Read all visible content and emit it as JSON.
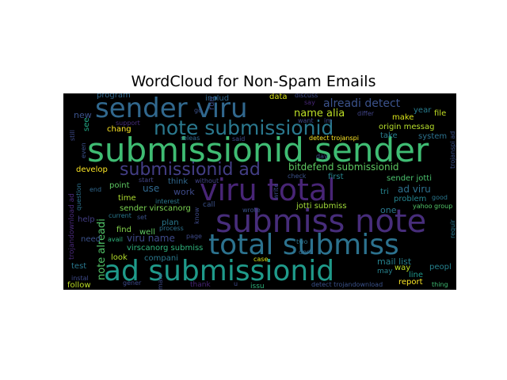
{
  "chart_data": {
    "type": "wordcloud",
    "title": "WordCloud for Non-Spam Emails",
    "background": "#000000",
    "words": [
      {
        "text": "submissionid sender",
        "weight": 1.0,
        "color": "#3fbc73"
      },
      {
        "text": "submiss note",
        "weight": 0.93,
        "color": "#472d7b"
      },
      {
        "text": "viru total",
        "weight": 0.9,
        "color": "#482576"
      },
      {
        "text": "total submiss",
        "weight": 0.86,
        "color": "#2c728e"
      },
      {
        "text": "ad submissionid",
        "weight": 0.84,
        "color": "#1f9a8a"
      },
      {
        "text": "sender viru",
        "weight": 0.78,
        "color": "#31688e"
      },
      {
        "text": "note submissionid",
        "weight": 0.6,
        "color": "#2a788e"
      },
      {
        "text": "submissionid ad",
        "weight": 0.52,
        "color": "#433e85"
      },
      {
        "text": "alreadi detect",
        "weight": 0.38,
        "color": "#3b528b"
      },
      {
        "text": "name alia",
        "weight": 0.34,
        "color": "#bddf26"
      },
      {
        "text": "bitdefend submissionid",
        "weight": 0.3,
        "color": "#5ec962"
      },
      {
        "text": "note alreadi",
        "weight": 0.3,
        "color": "#52c569"
      },
      {
        "text": "viru name",
        "weight": 0.28,
        "color": "#3e4a89"
      },
      {
        "text": "ad viru",
        "weight": 0.26,
        "color": "#2d708e"
      },
      {
        "text": "mail list",
        "weight": 0.24,
        "color": "#26828e"
      },
      {
        "text": "virscanorg submiss",
        "weight": 0.22,
        "color": "#2fb47c"
      },
      {
        "text": "origin messag",
        "weight": 0.2,
        "color": "#b5de2b"
      },
      {
        "text": "sender virscanorg",
        "weight": 0.2,
        "color": "#7ad151"
      },
      {
        "text": "jotti submiss",
        "weight": 0.18,
        "color": "#a0da39"
      },
      {
        "text": "sender jotti",
        "weight": 0.18,
        "color": "#4ac16d"
      },
      {
        "text": "new",
        "weight": 0.24,
        "color": "#3b528b"
      },
      {
        "text": "use",
        "weight": 0.24,
        "color": "#31688e"
      },
      {
        "text": "work",
        "weight": 0.2,
        "color": "#3e4a89"
      },
      {
        "text": "one",
        "weight": 0.2,
        "color": "#2a788e"
      },
      {
        "text": "time",
        "weight": 0.18,
        "color": "#addc30"
      },
      {
        "text": "first",
        "weight": 0.18,
        "color": "#25848e"
      },
      {
        "text": "develop",
        "weight": 0.16,
        "color": "#fde725"
      },
      {
        "text": "chang",
        "weight": 0.16,
        "color": "#fde725"
      },
      {
        "text": "point",
        "weight": 0.16,
        "color": "#5ec962"
      },
      {
        "text": "find",
        "weight": 0.16,
        "color": "#84d44b"
      },
      {
        "text": "well",
        "weight": 0.16,
        "color": "#5ec962"
      },
      {
        "text": "look",
        "weight": 0.16,
        "color": "#b5de2b"
      },
      {
        "text": "need",
        "weight": 0.16,
        "color": "#3b528b"
      },
      {
        "text": "see",
        "weight": 0.16,
        "color": "#22a884"
      },
      {
        "text": "way",
        "weight": 0.16,
        "color": "#bddf26"
      },
      {
        "text": "peopl",
        "weight": 0.16,
        "color": "#26828e"
      },
      {
        "text": "file",
        "weight": 0.14,
        "color": "#c2df23"
      },
      {
        "text": "system",
        "weight": 0.14,
        "color": "#2c728e"
      },
      {
        "text": "take",
        "weight": 0.14,
        "color": "#287c8e"
      },
      {
        "text": "make",
        "weight": 0.14,
        "color": "#d8e219"
      },
      {
        "text": "year",
        "weight": 0.14,
        "color": "#287c8e"
      },
      {
        "text": "problem",
        "weight": 0.14,
        "color": "#25848e"
      },
      {
        "text": "line",
        "weight": 0.14,
        "color": "#1f988b"
      },
      {
        "text": "report",
        "weight": 0.14,
        "color": "#fde725"
      },
      {
        "text": "follow",
        "weight": 0.14,
        "color": "#bddf26"
      },
      {
        "text": "test",
        "weight": 0.14,
        "color": "#2a788e"
      },
      {
        "text": "help",
        "weight": 0.14,
        "color": "#433e85"
      },
      {
        "text": "tri",
        "weight": 0.14,
        "color": "#25848e"
      },
      {
        "text": "data",
        "weight": 0.14,
        "color": "#d8e219"
      },
      {
        "text": "includ",
        "weight": 0.14,
        "color": "#31688e"
      },
      {
        "text": "program",
        "weight": 0.14,
        "color": "#31688e"
      },
      {
        "text": "run",
        "weight": 0.14,
        "color": "#3e4a89"
      },
      {
        "text": "plan",
        "weight": 0.14,
        "color": "#2a788e"
      },
      {
        "text": "compani",
        "weight": 0.14,
        "color": "#2a788e"
      },
      {
        "text": "think",
        "weight": 0.14,
        "color": "#31688e"
      },
      {
        "text": "call",
        "weight": 0.13,
        "color": "#3b528b"
      },
      {
        "text": "may",
        "weight": 0.13,
        "color": "#26828e"
      },
      {
        "text": "issu",
        "weight": 0.13,
        "color": "#2fb47c"
      },
      {
        "text": "thank",
        "weight": 0.13,
        "color": "#482475"
      },
      {
        "text": "detect trojanspi",
        "weight": 0.12,
        "color": "#fde725"
      },
      {
        "text": "trojandownload ad",
        "weight": 0.12,
        "color": "#482878"
      },
      {
        "text": "trojanspi ad",
        "weight": 0.12,
        "color": "#3b528b"
      },
      {
        "text": "detect trojandownload",
        "weight": 0.11,
        "color": "#3b528b"
      },
      {
        "text": "yahoo group",
        "weight": 0.11,
        "color": "#52c569"
      },
      {
        "text": "say",
        "weight": 0.11,
        "color": "#482878"
      },
      {
        "text": "discuss",
        "weight": 0.11,
        "color": "#3e4a89"
      },
      {
        "text": "differ",
        "weight": 0.11,
        "color": "#414487"
      },
      {
        "text": "support",
        "weight": 0.11,
        "color": "#472d7b"
      },
      {
        "text": "go",
        "weight": 0.11,
        "color": "#3b528b"
      },
      {
        "text": "want",
        "weight": 0.11,
        "color": "#3e4a89"
      },
      {
        "text": "im",
        "weight": 0.11,
        "color": "#3e4a89"
      },
      {
        "text": "still",
        "weight": 0.11,
        "color": "#3e4a89"
      },
      {
        "text": "even",
        "weight": 0.11,
        "color": "#3b528b"
      },
      {
        "text": "releas",
        "weight": 0.11,
        "color": "#31688e"
      },
      {
        "text": "said",
        "weight": 0.11,
        "color": "#3e4a89"
      },
      {
        "text": "day",
        "weight": 0.11,
        "color": "#3b528b"
      },
      {
        "text": "start",
        "weight": 0.11,
        "color": "#414487"
      },
      {
        "text": "without",
        "weight": 0.11,
        "color": "#414487"
      },
      {
        "text": "check",
        "weight": 0.11,
        "color": "#3b528b"
      },
      {
        "text": "end",
        "weight": 0.11,
        "color": "#31688e"
      },
      {
        "text": "question",
        "weight": 0.11,
        "color": "#2c728e"
      },
      {
        "text": "interest",
        "weight": 0.11,
        "color": "#2a788e"
      },
      {
        "text": "write",
        "weight": 0.11,
        "color": "#3e4a89"
      },
      {
        "text": "good",
        "weight": 0.11,
        "color": "#2a788e"
      },
      {
        "text": "wrote",
        "weight": 0.11,
        "color": "#3b528b"
      },
      {
        "text": "current",
        "weight": 0.11,
        "color": "#2a788e"
      },
      {
        "text": "set",
        "weight": 0.11,
        "color": "#3b528b"
      },
      {
        "text": "know",
        "weight": 0.11,
        "color": "#3e4a89"
      },
      {
        "text": "two",
        "weight": 0.11,
        "color": "#2c728e"
      },
      {
        "text": "avail",
        "weight": 0.11,
        "color": "#2fb47c"
      },
      {
        "text": "process",
        "weight": 0.11,
        "color": "#2c728e"
      },
      {
        "text": "page",
        "weight": 0.11,
        "color": "#3e4a89"
      },
      {
        "text": "dont",
        "weight": 0.11,
        "color": "#31688e"
      },
      {
        "text": "requir",
        "weight": 0.11,
        "color": "#2a788e"
      },
      {
        "text": "case",
        "weight": 0.11,
        "color": "#d8e219"
      },
      {
        "text": "instal",
        "weight": 0.11,
        "color": "#3e4a89"
      },
      {
        "text": "gener",
        "weight": 0.11,
        "color": "#3e4a89"
      },
      {
        "text": "mani",
        "weight": 0.11,
        "color": "#3e4a89"
      },
      {
        "text": "u",
        "weight": 0.11,
        "color": "#3e4a89"
      },
      {
        "text": "thing",
        "weight": 0.11,
        "color": "#3fbc73"
      }
    ]
  }
}
